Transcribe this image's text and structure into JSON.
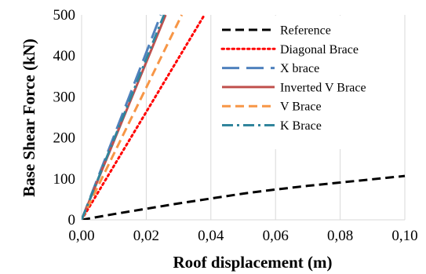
{
  "chart_data": {
    "type": "line",
    "xlabel": "Roof displacement (m)",
    "ylabel": "Base Shear Force  (kN)",
    "xlim": [
      0,
      0.1
    ],
    "ylim": [
      0,
      500
    ],
    "x_ticks": [
      "0,00",
      "0,02",
      "0,04",
      "0,06",
      "0,08",
      "0,10"
    ],
    "y_ticks": [
      "0",
      "100",
      "200",
      "300",
      "400",
      "500"
    ],
    "grid": "vertical",
    "legend_position": "top-right",
    "series": [
      {
        "name": "Reference",
        "color": "#000000",
        "style": "dash",
        "x": [
          0,
          0.01,
          0.02,
          0.03,
          0.04,
          0.05,
          0.06,
          0.07,
          0.08,
          0.09,
          0.1
        ],
        "y": [
          0,
          14,
          27,
          40,
          52,
          64,
          74,
          83,
          91,
          99,
          107
        ]
      },
      {
        "name": "Diagonal Brace",
        "color": "#ff0000",
        "style": "dot",
        "x": [
          0,
          0.038
        ],
        "y": [
          0,
          500
        ]
      },
      {
        "name": "X brace",
        "color": "#4f81bd",
        "style": "longdash",
        "x": [
          0,
          0.0245
        ],
        "y": [
          0,
          500
        ]
      },
      {
        "name": "Inverted V Brace",
        "color": "#c0504d",
        "style": "solid",
        "x": [
          0,
          0.026
        ],
        "y": [
          0,
          500
        ]
      },
      {
        "name": "V Brace",
        "color": "#f79646",
        "style": "dash",
        "x": [
          0,
          0.031
        ],
        "y": [
          0,
          500
        ]
      },
      {
        "name": "K Brace",
        "color": "#31859c",
        "style": "dashdot",
        "x": [
          0,
          0.0255
        ],
        "y": [
          0,
          500
        ]
      }
    ]
  }
}
